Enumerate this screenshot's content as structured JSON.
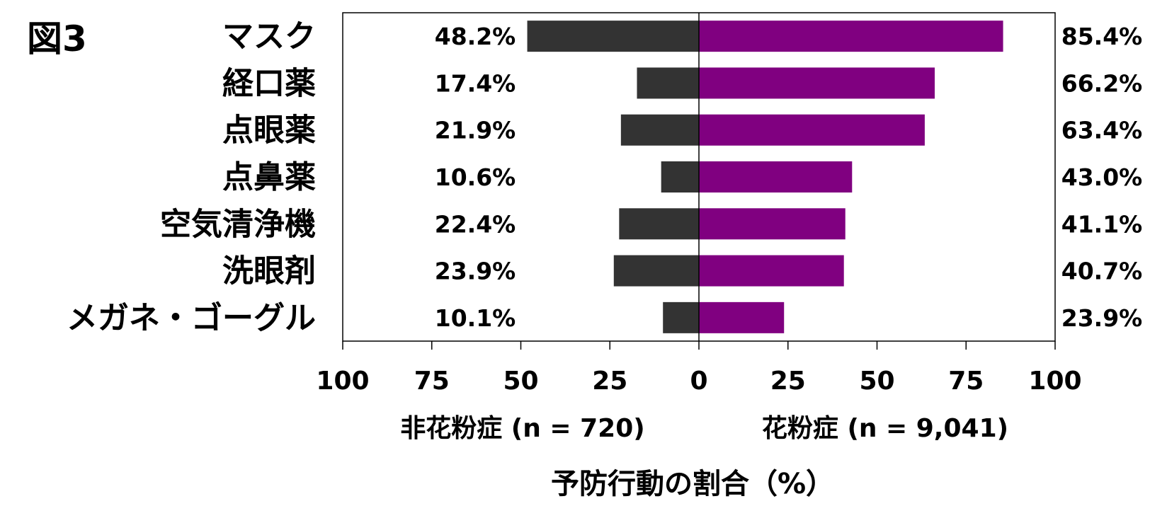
{
  "figure_label": "図3",
  "chart_data": {
    "type": "bar",
    "orientation": "horizontal",
    "layout": "diverging",
    "categories": [
      "マスク",
      "経口薬",
      "点眼薬",
      "点鼻薬",
      "空気清浄機",
      "洗眼剤",
      "メガネ・ゴーグル"
    ],
    "series": [
      {
        "name": "非花粉症 (n = 720)",
        "side": "left",
        "color": "#333333",
        "values": [
          48.2,
          17.4,
          21.9,
          10.6,
          22.4,
          23.9,
          10.1
        ],
        "labels": [
          "48.2%",
          "17.4%",
          "21.9%",
          "10.6%",
          "22.4%",
          "23.9%",
          "10.1%"
        ]
      },
      {
        "name": "花粉症 (n = 9,041)",
        "side": "right",
        "color": "#800080",
        "values": [
          85.4,
          66.2,
          63.4,
          43.0,
          41.1,
          40.7,
          23.9
        ],
        "labels": [
          "85.4%",
          "66.2%",
          "63.4%",
          "43.0%",
          "41.1%",
          "40.7%",
          "23.9%"
        ]
      }
    ],
    "xlabel": "予防行動の割合（%）",
    "xlim": [
      -100,
      100
    ],
    "ticks": [
      -100,
      -75,
      -50,
      -25,
      0,
      25,
      50,
      75,
      100
    ],
    "tick_labels": [
      "100",
      "75",
      "50",
      "25",
      "0",
      "25",
      "50",
      "75",
      "100"
    ],
    "grid": false,
    "legend": "none"
  }
}
